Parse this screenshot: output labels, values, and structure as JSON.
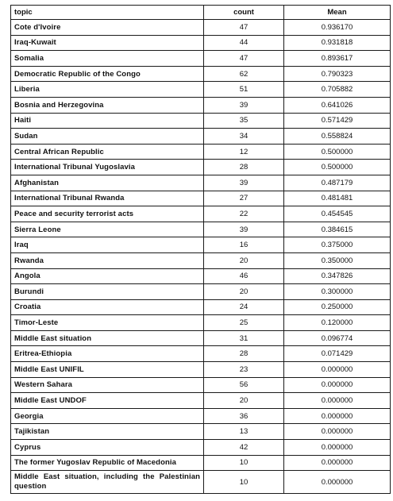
{
  "table": {
    "headers": {
      "topic": "topic",
      "count": "count",
      "mean": "Mean"
    },
    "rows": [
      {
        "topic": "Cote d'Ivoire",
        "count": "47",
        "mean": "0.936170"
      },
      {
        "topic": "Iraq-Kuwait",
        "count": "44",
        "mean": "0.931818"
      },
      {
        "topic": "Somalia",
        "count": "47",
        "mean": "0.893617"
      },
      {
        "topic": "Democratic Republic of the Congo",
        "count": "62",
        "mean": "0.790323"
      },
      {
        "topic": "Liberia",
        "count": "51",
        "mean": "0.705882"
      },
      {
        "topic": "Bosnia and Herzegovina",
        "count": "39",
        "mean": "0.641026"
      },
      {
        "topic": "Haiti",
        "count": "35",
        "mean": "0.571429"
      },
      {
        "topic": "Sudan",
        "count": "34",
        "mean": "0.558824"
      },
      {
        "topic": "Central African Republic",
        "count": "12",
        "mean": "0.500000"
      },
      {
        "topic": "International Tribunal Yugoslavia",
        "count": "28",
        "mean": "0.500000"
      },
      {
        "topic": "Afghanistan",
        "count": "39",
        "mean": "0.487179"
      },
      {
        "topic": "International Tribunal Rwanda",
        "count": "27",
        "mean": "0.481481"
      },
      {
        "topic": "Peace and security terrorist acts",
        "count": "22",
        "mean": "0.454545"
      },
      {
        "topic": "Sierra Leone",
        "count": "39",
        "mean": "0.384615"
      },
      {
        "topic": "Iraq",
        "count": "16",
        "mean": "0.375000"
      },
      {
        "topic": "Rwanda",
        "count": "20",
        "mean": "0.350000"
      },
      {
        "topic": "Angola",
        "count": "46",
        "mean": "0.347826"
      },
      {
        "topic": "Burundi",
        "count": "20",
        "mean": "0.300000"
      },
      {
        "topic": "Croatia",
        "count": "24",
        "mean": "0.250000"
      },
      {
        "topic": "Timor-Leste",
        "count": "25",
        "mean": "0.120000"
      },
      {
        "topic": "Middle East situation",
        "count": "31",
        "mean": "0.096774"
      },
      {
        "topic": "Eritrea-Ethiopia",
        "count": "28",
        "mean": "0.071429"
      },
      {
        "topic": "Middle East UNIFIL",
        "count": "23",
        "mean": "0.000000"
      },
      {
        "topic": "Western Sahara",
        "count": "56",
        "mean": "0.000000"
      },
      {
        "topic": "Middle East UNDOF",
        "count": "20",
        "mean": "0.000000"
      },
      {
        "topic": "Georgia",
        "count": "36",
        "mean": "0.000000"
      },
      {
        "topic": "Tajikistan",
        "count": "13",
        "mean": "0.000000"
      },
      {
        "topic": "Cyprus",
        "count": "42",
        "mean": "0.000000"
      },
      {
        "topic": "The former Yugoslav Republic of Macedonia",
        "count": "10",
        "mean": "0.000000"
      },
      {
        "topic": "Middle East situation, including the Palestinian question",
        "count": "10",
        "mean": "0.000000"
      }
    ]
  }
}
